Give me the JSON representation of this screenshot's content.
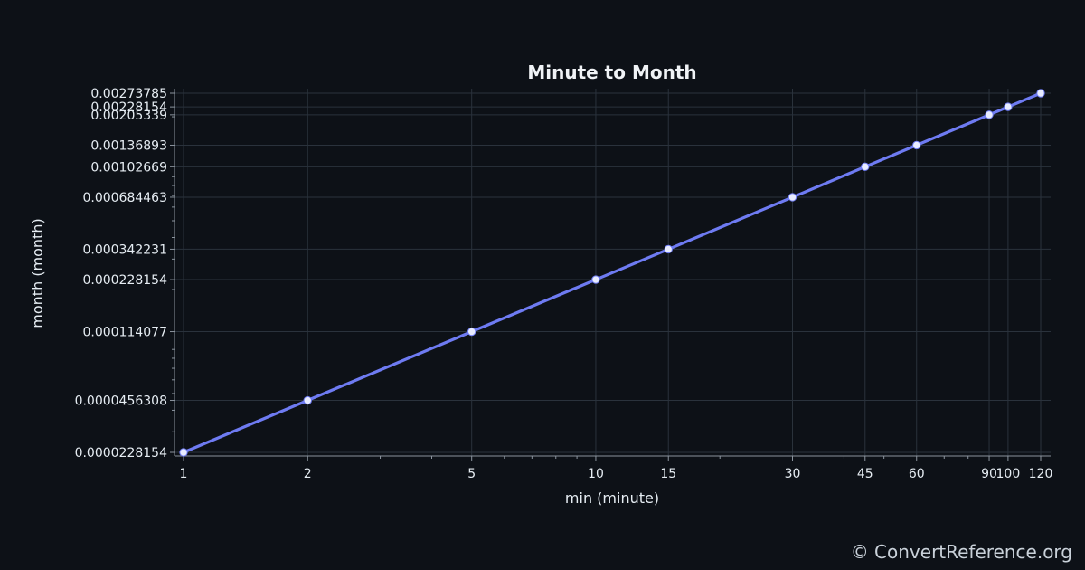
{
  "chart_data": {
    "type": "line",
    "title": "Minute to Month",
    "xlabel": "min (minute)",
    "ylabel": "month (month)",
    "x_scale": "log",
    "y_scale": "log",
    "grid": true,
    "x": [
      1,
      2,
      5,
      10,
      15,
      30,
      45,
      60,
      90,
      100,
      120
    ],
    "x_tick_labels": [
      "1",
      "2",
      "5",
      "10",
      "15",
      "30",
      "45",
      "60",
      "90",
      "100",
      "120"
    ],
    "y_ticks": [
      2.28154e-05,
      4.56308e-05,
      0.000114077,
      0.000228154,
      0.000342231,
      0.000684463,
      0.00102669,
      0.00136893,
      0.00205339,
      0.00228154,
      0.00273785
    ],
    "y_tick_labels": [
      "0.0000228154",
      "0.0000456308",
      "0.000114077",
      "0.000228154",
      "0.000342231",
      "0.000684463",
      "0.00102669",
      "0.00136893",
      "0.00205339",
      "0.00228154",
      "0.00273785"
    ],
    "series": [
      {
        "values": [
          2.28154e-05,
          4.56308e-05,
          0.000114077,
          0.000228154,
          0.000342231,
          0.000684463,
          0.00102669,
          0.00136893,
          0.00205339,
          0.00228154,
          0.00273785
        ]
      }
    ],
    "colors": {
      "line": "#6e7bf2",
      "marker": "#e8ecff",
      "grid": "#2a323c",
      "axis": "#8b949e"
    }
  },
  "footer": {
    "watermark": "© ConvertReference.org"
  }
}
